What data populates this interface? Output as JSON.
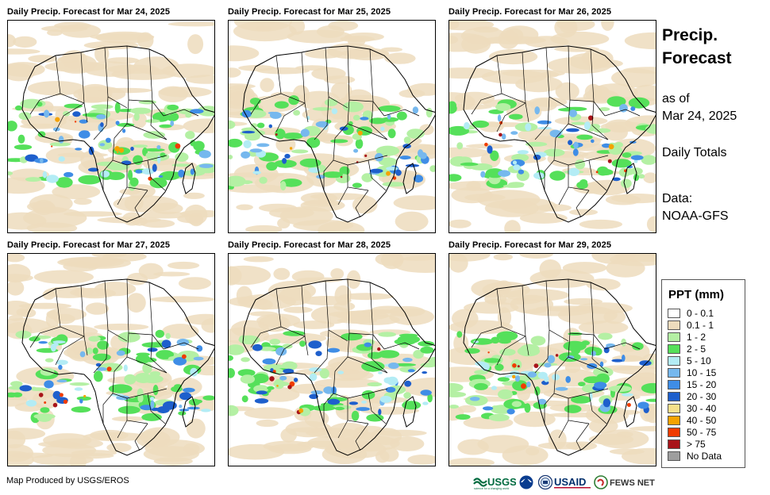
{
  "panels": [
    {
      "title": "Daily Precip. Forecast for Mar 24, 2025"
    },
    {
      "title": "Daily Precip. Forecast for Mar 25, 2025"
    },
    {
      "title": "Daily Precip. Forecast for Mar 26, 2025"
    },
    {
      "title": "Daily Precip. Forecast for Mar 27, 2025"
    },
    {
      "title": "Daily Precip. Forecast for Mar 28, 2025"
    },
    {
      "title": "Daily Precip. Forecast for Mar 29, 2025"
    }
  ],
  "info": {
    "title_line1": "Precip.",
    "title_line2": "Forecast",
    "as_of_line1": "as of",
    "as_of_line2": "Mar 24, 2025",
    "totals": "Daily Totals",
    "data_label": "Data:",
    "data_source": "NOAA-GFS"
  },
  "legend": {
    "title": "PPT (mm)",
    "items": [
      {
        "label": "0 - 0.1",
        "color": "#ffffff"
      },
      {
        "label": "0.1 - 1",
        "color": "#eddcbd"
      },
      {
        "label": "1 - 2",
        "color": "#b4f0a4"
      },
      {
        "label": "2 - 5",
        "color": "#55e05a"
      },
      {
        "label": "5 - 10",
        "color": "#b3ecf5"
      },
      {
        "label": "10 - 15",
        "color": "#76b8ee"
      },
      {
        "label": "15 - 20",
        "color": "#3f8de6"
      },
      {
        "label": "20 - 30",
        "color": "#1e5fcc"
      },
      {
        "label": "30 - 40",
        "color": "#f7e08a"
      },
      {
        "label": "40 - 50",
        "color": "#f5a300"
      },
      {
        "label": "50 - 75",
        "color": "#f03c00"
      },
      {
        "label": "> 75",
        "color": "#a8141a"
      },
      {
        "label": "No Data",
        "color": "#9e9e9e"
      }
    ]
  },
  "footer": {
    "credit": "Map Produced by USGS/EROS"
  },
  "logos": {
    "usgs": "USGS",
    "usgs_tagline": "science for a changing world",
    "usaid": "USAID",
    "fews": "FEWS NET"
  }
}
